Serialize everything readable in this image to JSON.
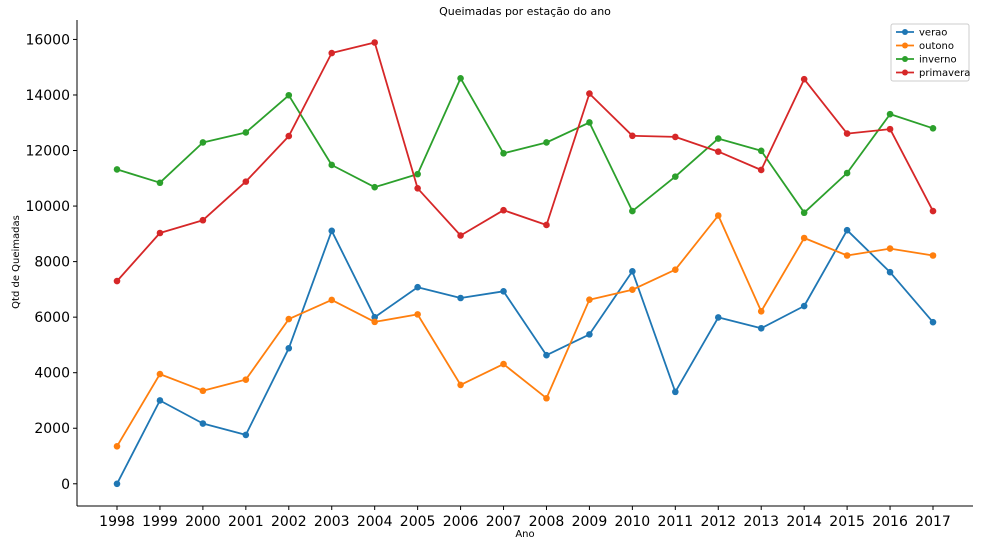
{
  "chart_data": {
    "type": "line",
    "title": "Queimadas por estação do ano",
    "xlabel": "Ano",
    "ylabel": "Qtd de Queimadas",
    "x": [
      1998,
      1999,
      2000,
      2001,
      2002,
      2003,
      2004,
      2005,
      2006,
      2007,
      2008,
      2009,
      2010,
      2011,
      2012,
      2013,
      2014,
      2015,
      2016,
      2017
    ],
    "ylim": [
      -800,
      16700
    ],
    "yticks": [
      0,
      2000,
      4000,
      6000,
      8000,
      10000,
      12000,
      14000,
      16000
    ],
    "grid": false,
    "legend": "top-right",
    "series": [
      {
        "name": "verao",
        "color": "#1f77b4",
        "values": [
          0,
          3000,
          2170,
          1760,
          4880,
          9110,
          6000,
          7080,
          6690,
          6930,
          4630,
          5380,
          7650,
          3310,
          5990,
          5600,
          6400,
          9130,
          7620,
          5820
        ]
      },
      {
        "name": "outono",
        "color": "#ff7f0e",
        "values": [
          1350,
          3950,
          3350,
          3750,
          5930,
          6620,
          5830,
          6100,
          3560,
          4310,
          3080,
          6630,
          6990,
          7710,
          9660,
          6210,
          8850,
          8220,
          8470,
          8220
        ]
      },
      {
        "name": "inverno",
        "color": "#2ca02c",
        "values": [
          11320,
          10840,
          12290,
          12650,
          13990,
          11480,
          10680,
          11150,
          14600,
          11900,
          12290,
          13010,
          9820,
          11060,
          12430,
          11990,
          9760,
          11190,
          13310,
          12800
        ]
      },
      {
        "name": "primavera",
        "color": "#d62728",
        "values": [
          7300,
          9030,
          9490,
          10880,
          12520,
          15510,
          15890,
          10640,
          8940,
          9850,
          9320,
          14050,
          12530,
          12490,
          11960,
          11300,
          14570,
          12610,
          12770,
          9820
        ]
      }
    ]
  }
}
